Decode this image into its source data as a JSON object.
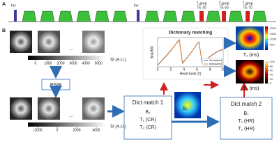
{
  "panel_labels": [
    "A",
    "B"
  ],
  "sequence": {
    "inversion_labels": [
      "Inv",
      "Inv"
    ],
    "t2prep": [
      {
        "label": "T₂prep",
        "te": "TE 30"
      },
      {
        "label": "T₂prep",
        "te": "TE 50"
      },
      {
        "label": "T₂prep",
        "te": "TE 70"
      }
    ]
  },
  "ellipsis": [
    "...",
    "..."
  ],
  "colorbar_top": {
    "label": "SI (A.U.)",
    "lim": [
      -600,
      5600
    ],
    "ticks": [
      0,
      1000,
      2000,
      3000,
      4000,
      5000
    ]
  },
  "psir": "PSIR",
  "colorbar_bottom": {
    "label": "SI (A.U.)",
    "lim": [
      -3000,
      5000
    ],
    "ticks": [
      -2000,
      0,
      2000,
      4000
    ]
  },
  "chart_data": {
    "type": "line",
    "title": "Dictionary matching",
    "xlabel": "Heart beat (#)",
    "ylabel": "Mxy/M0",
    "x": [
      0,
      1,
      2,
      3,
      3.3,
      3.8,
      5,
      6,
      6.3,
      6.8,
      8,
      9,
      10
    ],
    "series": [
      {
        "name": "Simulated",
        "color": "#2f6db5",
        "values": [
          0.05,
          0.3,
          0.55,
          0.85,
          0.93,
          0.12,
          0.45,
          0.78,
          0.85,
          0.12,
          0.35,
          0.5,
          0.6
        ]
      },
      {
        "name": "Measured",
        "color": "#e0782a",
        "values": [
          0.06,
          0.31,
          0.56,
          0.84,
          0.92,
          0.13,
          0.46,
          0.77,
          0.84,
          0.13,
          0.36,
          0.51,
          0.61
        ]
      }
    ],
    "xlim": [
      0,
      10
    ],
    "xticks": [
      0,
      2,
      4,
      6,
      8,
      10
    ],
    "ylim": [
      0,
      1
    ],
    "legend": "lower right"
  },
  "b1_map": {
    "label": "B₁"
  },
  "dict_match_1": {
    "title": "Dict match 1",
    "lines": [
      "B₁",
      "T₁ (CR)",
      "T₂ (CR)"
    ]
  },
  "dict_match_2": {
    "title": "Dict match 2",
    "lines": [
      "B₁",
      "T₁ (HR)",
      "T₂ (HR)"
    ]
  },
  "t1_map": {
    "label": "T₁ (ms)",
    "lim": [
      0,
      2200
    ],
    "ticks": [
      500,
      1000,
      1500,
      2000
    ]
  },
  "t2_map": {
    "label": "T₂ (ms)",
    "lim": [
      0,
      110
    ],
    "ticks": [
      0,
      20,
      40,
      60,
      80,
      100
    ]
  }
}
